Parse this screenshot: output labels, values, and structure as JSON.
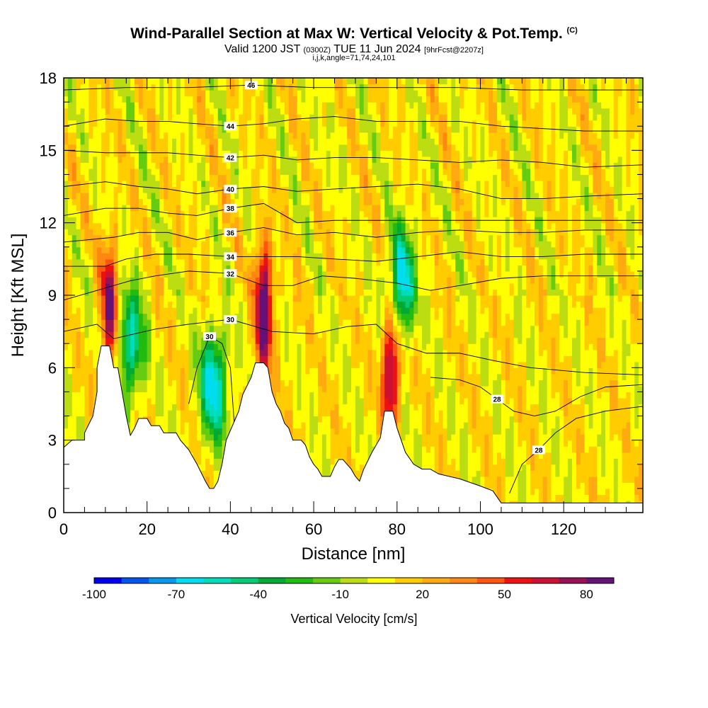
{
  "header": {
    "title": "Wind-Parallel Section at Max W: Vertical Velocity & Pot.Temp.",
    "copyright": "(C)",
    "valid_prefix": "Valid 1200 JST",
    "valid_utc": "(0300Z)",
    "valid_date": "TUE 11 Jun 2024",
    "forecast": "[9hrFcst@2207z]",
    "indices": "i,j,k,angle=71,74,24,101"
  },
  "chart_data": {
    "type": "heatmap",
    "xlabel": "Distance [nm]",
    "ylabel": "Height [Kft MSL]",
    "xlim": [
      0,
      139
    ],
    "ylim": [
      0,
      18
    ],
    "x_ticks": [
      0,
      20,
      40,
      60,
      80,
      100,
      120
    ],
    "y_ticks": [
      0,
      3,
      6,
      9,
      12,
      15,
      18
    ],
    "colorbar": {
      "label": "Vertical Velocity [cm/s]",
      "min": -100,
      "max": 95,
      "step": 10,
      "tick_labels": [
        "-100",
        "-70",
        "-40",
        "-10",
        "20",
        "50",
        "80"
      ],
      "colors": [
        "#0000ee",
        "#0055ee",
        "#0099ee",
        "#00ddee",
        "#00ddbb",
        "#00cc77",
        "#00aa33",
        "#22bb11",
        "#66cc11",
        "#bbdd11",
        "#ffff00",
        "#ffcc00",
        "#ffaa11",
        "#ff8811",
        "#ff5511",
        "#ee1111",
        "#cc1133",
        "#991155",
        "#661177"
      ]
    },
    "updraft_cores": [
      {
        "x": 11,
        "y": 8.5,
        "value": 75
      },
      {
        "x": 48,
        "y": 8.5,
        "value": 95
      },
      {
        "x": 78.5,
        "y": 6.0,
        "value": 80
      }
    ],
    "downdraft_cores": [
      {
        "x": 16,
        "y": 7.0,
        "value": -65
      },
      {
        "x": 36,
        "y": 5.3,
        "value": -75
      },
      {
        "x": 81,
        "y": 9.5,
        "value": -75
      }
    ],
    "theta_contours": [
      {
        "label": "28",
        "points": [
          [
            88,
            5.6
          ],
          [
            95,
            5.5
          ],
          [
            100,
            5.2
          ],
          [
            104,
            4.7
          ],
          [
            108,
            4.2
          ],
          [
            113,
            4.0
          ],
          [
            118,
            4.2
          ],
          [
            124,
            4.8
          ],
          [
            130,
            5.2
          ],
          [
            139,
            5.3
          ]
        ]
      },
      {
        "label": "28",
        "points": [
          [
            107,
            0.8
          ],
          [
            110,
            2.0
          ],
          [
            114,
            2.6
          ],
          [
            118,
            3.3
          ],
          [
            123,
            3.9
          ],
          [
            130,
            4.2
          ],
          [
            139,
            4.4
          ]
        ]
      },
      {
        "label": "30",
        "points": [
          [
            0,
            7.5
          ],
          [
            8,
            7.8
          ],
          [
            12,
            7.2
          ],
          [
            17,
            7.4
          ],
          [
            22,
            7.6
          ],
          [
            30,
            7.8
          ],
          [
            40,
            8.0
          ],
          [
            50,
            7.5
          ],
          [
            60,
            7.4
          ],
          [
            68,
            7.7
          ],
          [
            75,
            7.8
          ],
          [
            80,
            7.0
          ],
          [
            87,
            6.6
          ],
          [
            95,
            6.6
          ],
          [
            103,
            6.3
          ],
          [
            112,
            6.0
          ],
          [
            125,
            5.8
          ],
          [
            139,
            5.7
          ]
        ]
      },
      {
        "label": "30",
        "points": [
          [
            30,
            4.5
          ],
          [
            32,
            6.0
          ],
          [
            35,
            7.3
          ],
          [
            38,
            7.0
          ],
          [
            40,
            6.0
          ],
          [
            41,
            3.5
          ]
        ]
      },
      {
        "label": "32",
        "points": [
          [
            0,
            8.8
          ],
          [
            6,
            9.1
          ],
          [
            12,
            9.4
          ],
          [
            16,
            9.6
          ],
          [
            22,
            9.8
          ],
          [
            30,
            10.0
          ],
          [
            40,
            9.9
          ],
          [
            48,
            9.4
          ],
          [
            55,
            9.4
          ],
          [
            62,
            9.8
          ],
          [
            70,
            9.7
          ],
          [
            80,
            9.5
          ],
          [
            88,
            9.2
          ],
          [
            95,
            9.4
          ],
          [
            105,
            9.7
          ],
          [
            115,
            9.8
          ],
          [
            125,
            9.8
          ],
          [
            139,
            9.8
          ]
        ]
      },
      {
        "label": "34",
        "points": [
          [
            0,
            10.2
          ],
          [
            10,
            10.2
          ],
          [
            15,
            10.5
          ],
          [
            22,
            10.7
          ],
          [
            30,
            10.7
          ],
          [
            40,
            10.6
          ],
          [
            48,
            10.6
          ],
          [
            56,
            10.6
          ],
          [
            65,
            10.5
          ],
          [
            75,
            10.4
          ],
          [
            85,
            10.6
          ],
          [
            95,
            10.8
          ],
          [
            105,
            10.6
          ],
          [
            115,
            10.6
          ],
          [
            125,
            10.7
          ],
          [
            139,
            10.7
          ]
        ]
      },
      {
        "label": "36",
        "points": [
          [
            0,
            11.2
          ],
          [
            12,
            11.4
          ],
          [
            18,
            11.6
          ],
          [
            25,
            11.6
          ],
          [
            32,
            11.3
          ],
          [
            40,
            11.6
          ],
          [
            48,
            11.8
          ],
          [
            56,
            11.5
          ],
          [
            65,
            11.6
          ],
          [
            75,
            11.4
          ],
          [
            85,
            11.6
          ],
          [
            95,
            11.7
          ],
          [
            105,
            11.6
          ],
          [
            115,
            11.6
          ],
          [
            125,
            11.7
          ],
          [
            139,
            11.7
          ]
        ]
      },
      {
        "label": "38",
        "points": [
          [
            0,
            12.3
          ],
          [
            10,
            12.6
          ],
          [
            18,
            12.6
          ],
          [
            25,
            12.4
          ],
          [
            32,
            12.3
          ],
          [
            40,
            12.6
          ],
          [
            48,
            12.8
          ],
          [
            56,
            12.0
          ],
          [
            65,
            12.1
          ],
          [
            75,
            12.1
          ],
          [
            85,
            12.1
          ],
          [
            95,
            12.1
          ],
          [
            105,
            12.1
          ],
          [
            115,
            12.1
          ],
          [
            125,
            12.1
          ],
          [
            139,
            12.1
          ]
        ]
      },
      {
        "label": "40",
        "points": [
          [
            0,
            13.5
          ],
          [
            10,
            13.7
          ],
          [
            18,
            13.5
          ],
          [
            25,
            13.4
          ],
          [
            32,
            13.2
          ],
          [
            40,
            13.4
          ],
          [
            48,
            13.5
          ],
          [
            56,
            13.3
          ],
          [
            65,
            13.4
          ],
          [
            75,
            13.5
          ],
          [
            85,
            13.6
          ],
          [
            95,
            13.4
          ],
          [
            105,
            13.0
          ],
          [
            115,
            13.0
          ],
          [
            125,
            13.1
          ],
          [
            139,
            13.2
          ]
        ]
      },
      {
        "label": "42",
        "points": [
          [
            0,
            15.0
          ],
          [
            10,
            14.9
          ],
          [
            18,
            14.9
          ],
          [
            25,
            14.9
          ],
          [
            32,
            14.8
          ],
          [
            40,
            14.7
          ],
          [
            48,
            14.8
          ],
          [
            56,
            14.6
          ],
          [
            65,
            14.7
          ],
          [
            75,
            14.7
          ],
          [
            85,
            14.6
          ],
          [
            95,
            14.5
          ],
          [
            105,
            14.6
          ],
          [
            115,
            14.5
          ],
          [
            125,
            14.3
          ],
          [
            139,
            14.4
          ]
        ]
      },
      {
        "label": "44",
        "points": [
          [
            0,
            16.0
          ],
          [
            10,
            16.3
          ],
          [
            18,
            16.2
          ],
          [
            25,
            16.2
          ],
          [
            32,
            16.1
          ],
          [
            40,
            16.0
          ],
          [
            48,
            16.1
          ],
          [
            56,
            16.3
          ],
          [
            65,
            16.4
          ],
          [
            75,
            16.2
          ],
          [
            85,
            16.2
          ],
          [
            95,
            16.2
          ],
          [
            105,
            16.0
          ],
          [
            115,
            15.9
          ],
          [
            125,
            15.8
          ],
          [
            139,
            15.8
          ]
        ]
      },
      {
        "label": "46",
        "points": [
          [
            0,
            17.5
          ],
          [
            15,
            17.6
          ],
          [
            30,
            17.6
          ],
          [
            45,
            17.7
          ],
          [
            60,
            17.6
          ],
          [
            75,
            17.6
          ],
          [
            95,
            17.6
          ],
          [
            110,
            17.5
          ],
          [
            125,
            17.5
          ],
          [
            139,
            17.5
          ]
        ]
      }
    ],
    "terrain": [
      [
        0,
        2.7
      ],
      [
        2,
        3.0
      ],
      [
        5,
        3.0
      ],
      [
        5,
        3.3
      ],
      [
        7,
        4.0
      ],
      [
        8,
        5.0
      ],
      [
        8,
        6.0
      ],
      [
        9,
        6.9
      ],
      [
        11,
        6.9
      ],
      [
        12,
        6.0
      ],
      [
        13,
        6.0
      ],
      [
        14,
        5.0
      ],
      [
        15,
        4.0
      ],
      [
        16,
        3.2
      ],
      [
        17,
        3.5
      ],
      [
        18,
        3.9
      ],
      [
        20,
        3.9
      ],
      [
        21,
        3.6
      ],
      [
        23,
        3.6
      ],
      [
        24,
        3.3
      ],
      [
        27,
        3.3
      ],
      [
        28,
        3.0
      ],
      [
        30,
        2.6
      ],
      [
        32,
        2.0
      ],
      [
        34,
        1.3
      ],
      [
        35,
        1.0
      ],
      [
        36,
        1.0
      ],
      [
        37,
        1.3
      ],
      [
        38,
        2.0
      ],
      [
        39,
        3.0
      ],
      [
        41,
        3.8
      ],
      [
        42,
        4.2
      ],
      [
        43,
        4.9
      ],
      [
        45,
        5.6
      ],
      [
        46,
        6.2
      ],
      [
        48,
        6.2
      ],
      [
        49,
        6.0
      ],
      [
        50,
        5.0
      ],
      [
        51,
        4.5
      ],
      [
        52,
        4.2
      ],
      [
        53,
        3.7
      ],
      [
        54,
        3.5
      ],
      [
        55,
        3.0
      ],
      [
        56,
        3.0
      ],
      [
        57,
        3.0
      ],
      [
        58,
        2.8
      ],
      [
        59,
        2.3
      ],
      [
        60,
        2.0
      ],
      [
        61,
        1.8
      ],
      [
        62,
        1.5
      ],
      [
        63,
        1.5
      ],
      [
        64,
        1.5
      ],
      [
        65,
        1.9
      ],
      [
        66,
        2.2
      ],
      [
        67,
        2.2
      ],
      [
        68,
        2.0
      ],
      [
        69,
        1.8
      ],
      [
        70,
        1.5
      ],
      [
        71,
        1.3
      ],
      [
        72,
        1.8
      ],
      [
        74,
        2.5
      ],
      [
        76,
        3.1
      ],
      [
        77,
        4.2
      ],
      [
        79,
        4.2
      ],
      [
        80,
        3.5
      ],
      [
        81,
        3.0
      ],
      [
        82,
        2.5
      ],
      [
        84,
        2.0
      ],
      [
        86,
        1.8
      ],
      [
        88,
        1.8
      ],
      [
        90,
        1.6
      ],
      [
        95,
        1.4
      ],
      [
        100,
        1.1
      ],
      [
        103,
        0.9
      ],
      [
        105,
        0.4
      ],
      [
        110,
        0.4
      ],
      [
        120,
        0.4
      ],
      [
        130,
        0.4
      ],
      [
        139,
        0.4
      ]
    ]
  }
}
